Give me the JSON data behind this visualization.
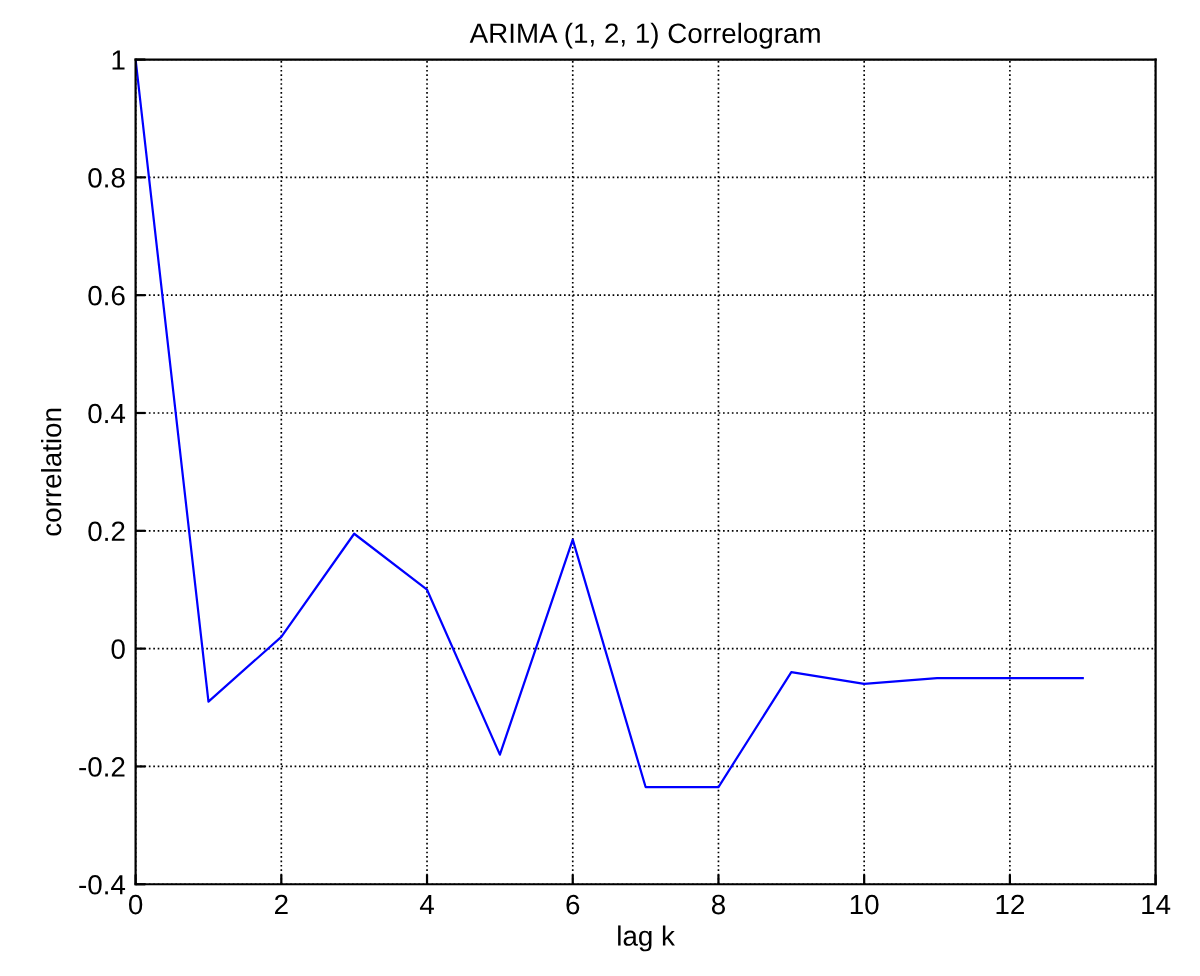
{
  "chart_data": {
    "type": "line",
    "title": "ARIMA (1, 2, 1) Correlogram",
    "xlabel": "lag k",
    "ylabel": "correlation",
    "x": [
      0,
      1,
      2,
      3,
      4,
      5,
      6,
      7,
      8,
      9,
      10,
      11,
      12,
      13
    ],
    "series": [
      {
        "color": "#0000ff",
        "values": [
          1,
          -0.09,
          0.02,
          0.195,
          0.1,
          -0.18,
          0.185,
          -0.235,
          -0.235,
          -0.04,
          -0.06,
          -0.05,
          -0.05,
          -0.05
        ]
      }
    ],
    "xlim": [
      0,
      14
    ],
    "xticks": [
      0,
      2,
      4,
      6,
      8,
      10,
      12,
      14
    ],
    "ylim": [
      -0.4,
      1
    ],
    "yticks": [
      -0.4,
      -0.2,
      0,
      0.2,
      0.4,
      0.6,
      0.8,
      1
    ],
    "grid": true,
    "line_style": "solid",
    "marker": "none",
    "legend": false
  }
}
